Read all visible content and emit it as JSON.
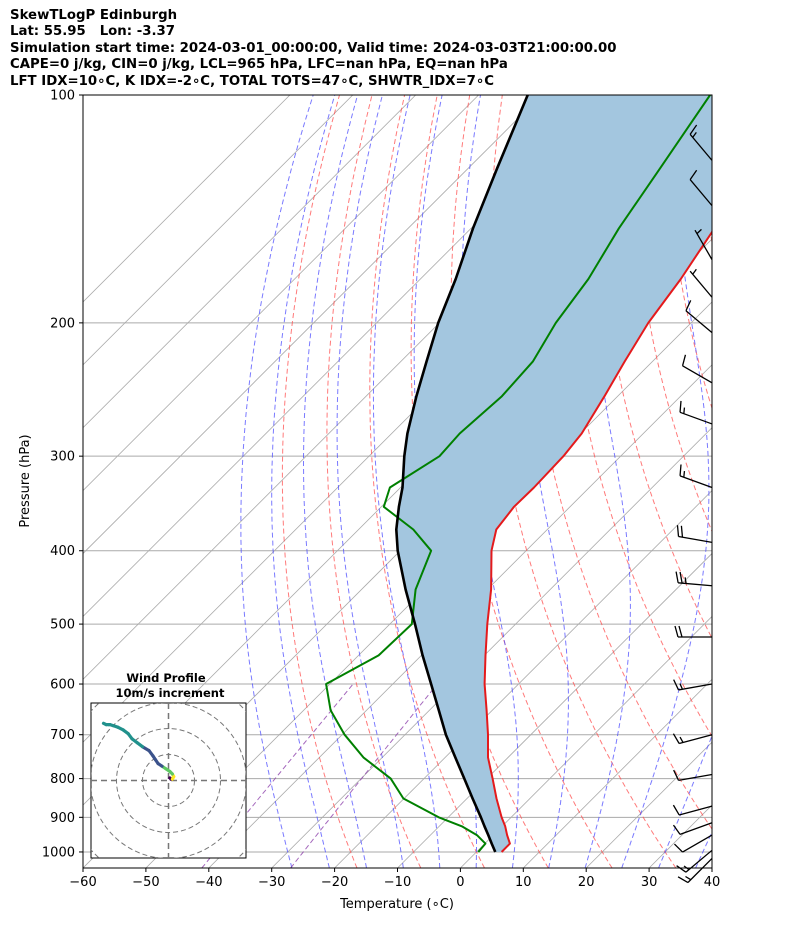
{
  "header": {
    "line1": "SkewTLogP Edinburgh",
    "line2": "Lat: 55.95   Lon: -3.37",
    "line3": "Simulation start time: 2024-03-01_00:00:00, Valid time: 2024-03-03T21:00:00.00",
    "line4": "CAPE=0 j/kg, CIN=0 j/kg, LCL=965 hPa, LFC=nan hPa, EQ=nan hPa",
    "line5": "LFT IDX=10∘C, K IDX=-2∘C, TOTAL TOTS=47∘C, SHWTR_IDX=7∘C"
  },
  "chart_data": [
    {
      "type": "line",
      "kind": "skew-T log-P diagram",
      "xlabel": "Temperature (∘C)",
      "ylabel": "Pressure (hPa)",
      "xlim": [
        -60,
        40
      ],
      "ylim_hpa": [
        1050,
        100
      ],
      "y_scale": "log",
      "x_ticks": [
        "−60",
        "−50",
        "−40",
        "−30",
        "−20",
        "−10",
        "0",
        "10",
        "20",
        "30",
        "40"
      ],
      "y_ticks": [
        "100",
        "200",
        "300",
        "400",
        "500",
        "600",
        "700",
        "800",
        "900",
        "1000"
      ],
      "grid": true,
      "colors": {
        "temperature": "#e41a1c",
        "dewpoint": "#008000",
        "parcel": "#000000",
        "cape_fill": "#a3c6df",
        "dry_adiabat": "#ff4d4d",
        "moist_adiabat": "#4d4dff",
        "mixing_ratio": "#8e44ad",
        "isotherm": "#aaaaaa"
      },
      "series": [
        {
          "role": "temperature",
          "p": [
            1000,
            975,
            950,
            925,
            900,
            850,
            800,
            750,
            700,
            650,
            600,
            550,
            500,
            450,
            400,
            375,
            350,
            330,
            300,
            280,
            250,
            225,
            200,
            175,
            150,
            125,
            100
          ],
          "t": [
            4,
            4,
            2.2,
            0.5,
            -1.5,
            -5.3,
            -9.1,
            -13.2,
            -16.8,
            -20.9,
            -25.4,
            -29.8,
            -34.5,
            -39.4,
            -45.5,
            -48.1,
            -48.9,
            -48.8,
            -49.1,
            -49.8,
            -52.1,
            -54.4,
            -56.8,
            -58.6,
            -61.3,
            -63.9,
            -67.4
          ]
        },
        {
          "role": "dewpoint",
          "p": [
            1000,
            975,
            950,
            925,
            900,
            850,
            800,
            750,
            700,
            650,
            600,
            550,
            500,
            450,
            400,
            375,
            350,
            330,
            300,
            280,
            250,
            225,
            200,
            175,
            150,
            125,
            100
          ],
          "t": [
            0.3,
            0.1,
            -2.6,
            -6.4,
            -11.5,
            -20.1,
            -25.3,
            -33,
            -39.6,
            -45.7,
            -50.6,
            -46.8,
            -46.5,
            -51.4,
            -55.1,
            -61.3,
            -69.6,
            -71.7,
            -68.8,
            -69.2,
            -68.4,
            -69,
            -71.5,
            -73.3,
            -76.5,
            -79.5,
            -83.2
          ]
        },
        {
          "role": "parcel",
          "p": [
            1000,
            975,
            950,
            925,
            900,
            850,
            800,
            750,
            700,
            650,
            600,
            550,
            500,
            450,
            400,
            375,
            350,
            330,
            300,
            280,
            250,
            225,
            200,
            175,
            150,
            125,
            100
          ],
          "t": [
            3,
            1.1,
            -0.8,
            -2.8,
            -4.8,
            -9.1,
            -13.6,
            -18.4,
            -23.5,
            -28.5,
            -33.9,
            -39.8,
            -46,
            -53,
            -60.4,
            -64,
            -67.2,
            -69.7,
            -74.4,
            -77.5,
            -82,
            -85.9,
            -90.2,
            -94.4,
            -99.7,
            -105.4,
            -112.2
          ]
        }
      ],
      "wind_barbs": [
        {
          "p": 1020,
          "spd_ms": 6.9,
          "dir": 225
        },
        {
          "p": 995,
          "spd_ms": 6.6,
          "dir": 230
        },
        {
          "p": 950,
          "spd_ms": 6.2,
          "dir": 240
        },
        {
          "p": 915,
          "spd_ms": 4.8,
          "dir": 250
        },
        {
          "p": 870,
          "spd_ms": 4.6,
          "dir": 255
        },
        {
          "p": 790,
          "spd_ms": 4.2,
          "dir": 260
        },
        {
          "p": 700,
          "spd_ms": 7.2,
          "dir": 255
        },
        {
          "p": 600,
          "spd_ms": 7.5,
          "dir": 260
        },
        {
          "p": 520,
          "spd_ms": 9.6,
          "dir": 270
        },
        {
          "p": 445,
          "spd_ms": 13.9,
          "dir": 275
        },
        {
          "p": 390,
          "spd_ms": 11.3,
          "dir": 280
        },
        {
          "p": 330,
          "spd_ms": 8.4,
          "dir": 290
        },
        {
          "p": 272,
          "spd_ms": 7,
          "dir": 290
        },
        {
          "p": 240,
          "spd_ms": 5.6,
          "dir": 300
        },
        {
          "p": 206,
          "spd_ms": 5.5,
          "dir": 310
        },
        {
          "p": 185,
          "spd_ms": 3.4,
          "dir": 320
        },
        {
          "p": 165,
          "spd_ms": 3.5,
          "dir": 330
        },
        {
          "p": 140,
          "spd_ms": 6.2,
          "dir": 320
        },
        {
          "p": 122,
          "spd_ms": 6.5,
          "dir": 320
        }
      ]
    },
    {
      "type": "line",
      "kind": "hodograph",
      "title": "Wind Profile",
      "subtitle": "10m/s increment",
      "ring_spacing_ms": 10,
      "colormap": "viridis",
      "u": [
        0.5,
        1,
        1.5,
        2,
        1.5,
        0.5,
        -1,
        -2.5,
        -4,
        -5,
        -6,
        -7.5,
        -10,
        -12,
        -14,
        -15.5,
        -17.5,
        -19.5,
        -21,
        -22.5,
        -23,
        -24,
        -25
      ],
      "v": [
        1,
        0.5,
        0.5,
        1.5,
        2.5,
        3.5,
        4.5,
        5.5,
        6.5,
        8,
        9.5,
        11.5,
        13,
        14.5,
        16,
        18,
        19.5,
        20.5,
        21,
        21.5,
        21.5,
        21.5,
        22
      ]
    }
  ]
}
